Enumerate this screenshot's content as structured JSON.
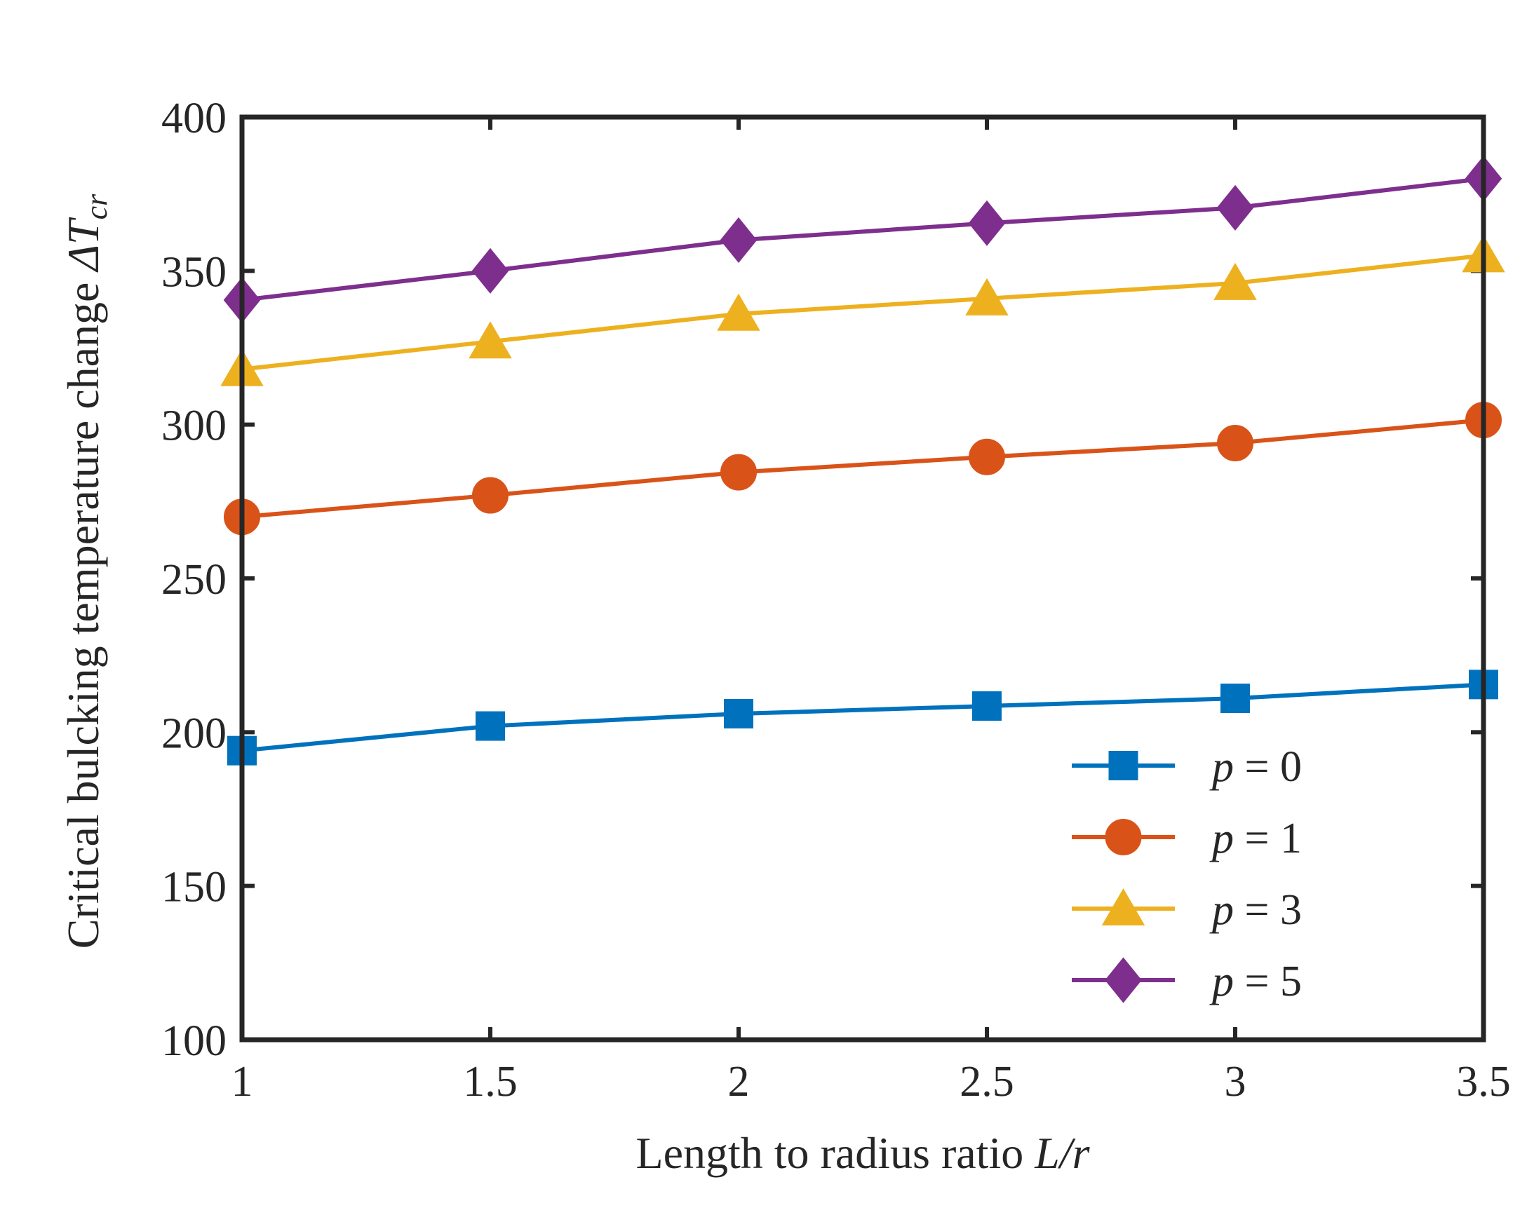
{
  "chart_data": {
    "type": "line",
    "title": "",
    "xlabel": "Length to radius ratio L/r",
    "xlabel_text": "Length to radius ratio ",
    "xlabel_math": "L/r",
    "ylabel": "Critical bulcking temperature change ΔT_cr",
    "ylabel_text": "Critical bulcking temperature change ",
    "ylabel_math_symbol": "ΔT",
    "ylabel_math_sub": "cr",
    "xlim": [
      1,
      3.5
    ],
    "ylim": [
      100,
      400
    ],
    "xticks": [
      1,
      1.5,
      2,
      2.5,
      3,
      3.5
    ],
    "xtick_labels": [
      "1",
      "1.5",
      "2",
      "2.5",
      "3",
      "3.5"
    ],
    "yticks": [
      100,
      150,
      200,
      250,
      300,
      350,
      400
    ],
    "ytick_labels": [
      "100",
      "150",
      "200",
      "250",
      "300",
      "350",
      "400"
    ],
    "grid": false,
    "legend_position": "bottom-right",
    "x": [
      1,
      1.5,
      2,
      2.5,
      3,
      3.5
    ],
    "series": [
      {
        "name": "p = 0",
        "name_var": "p",
        "name_rest": " = 0",
        "marker": "square",
        "color": "#0072BD",
        "values": [
          194,
          202,
          206,
          208.5,
          211,
          215.5
        ]
      },
      {
        "name": "p = 1",
        "name_var": "p",
        "name_rest": " = 1",
        "marker": "circle",
        "color": "#D95319",
        "values": [
          270,
          277,
          284.5,
          289.5,
          294,
          301.5
        ]
      },
      {
        "name": "p = 3",
        "name_var": "p",
        "name_rest": " = 3",
        "marker": "triangle",
        "color": "#EDB120",
        "values": [
          318,
          327,
          336,
          341,
          346,
          355
        ]
      },
      {
        "name": "p = 5",
        "name_var": "p",
        "name_rest": " = 5",
        "marker": "diamond",
        "color": "#7E2F8E",
        "values": [
          340.5,
          350,
          360,
          365.5,
          370.5,
          380
        ]
      }
    ]
  }
}
